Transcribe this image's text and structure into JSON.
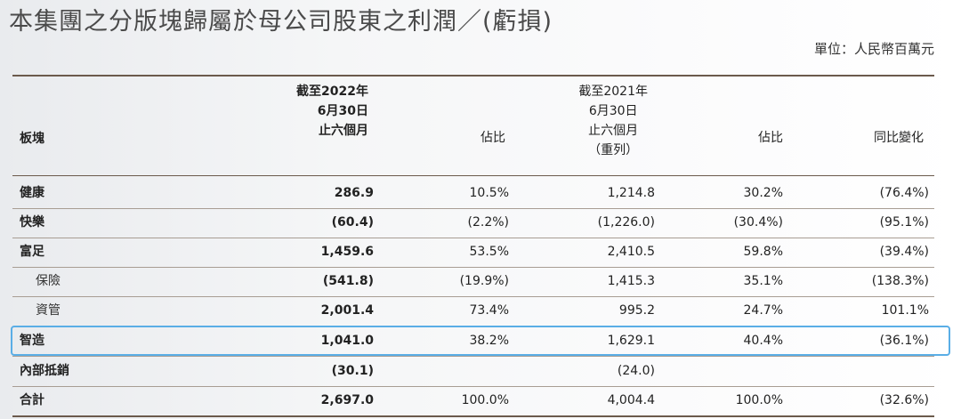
{
  "title": "本集團之分版塊歸屬於母公司股東之利潤／(虧損)",
  "unit": "單位：人民幣百萬元",
  "headers": {
    "segment": "板塊",
    "col1": [
      "截至2022年",
      "6月30日",
      "止六個月"
    ],
    "col2": "佔比",
    "col3": [
      "截至2021年",
      "6月30日",
      "止六個月",
      "（重列）"
    ],
    "col4": "佔比",
    "col5": "同比變化"
  },
  "rows": [
    {
      "label": "健康",
      "v2022": "286.9",
      "share2022": "10.5%",
      "v2021": "1,214.8",
      "share2021": "30.2%",
      "yoy": "(76.4%)"
    },
    {
      "label": "快樂",
      "v2022": "(60.4)",
      "share2022": "(2.2%)",
      "v2021": "(1,226.0)",
      "share2021": "(30.4%)",
      "yoy": "(95.1%)"
    },
    {
      "label": "富足",
      "v2022": "1,459.6",
      "share2022": "53.5%",
      "v2021": "2,410.5",
      "share2021": "59.8%",
      "yoy": "(39.4%)"
    },
    {
      "label": "保險",
      "v2022": "(541.8)",
      "share2022": "(19.9%)",
      "v2021": "1,415.3",
      "share2021": "35.1%",
      "yoy": "(138.3%)"
    },
    {
      "label": "資管",
      "v2022": "2,001.4",
      "share2022": "73.4%",
      "v2021": "995.2",
      "share2021": "24.7%",
      "yoy": "101.1%"
    },
    {
      "label": "智造",
      "v2022": "1,041.0",
      "share2022": "38.2%",
      "v2021": "1,629.1",
      "share2021": "40.4%",
      "yoy": "(36.1%)"
    },
    {
      "label": "內部抵銷",
      "v2022": "(30.1)",
      "share2022": "",
      "v2021": "(24.0)",
      "share2021": "",
      "yoy": ""
    },
    {
      "label": "合計",
      "v2022": "2,697.0",
      "share2022": "100.0%",
      "v2021": "4,004.4",
      "share2021": "100.0%",
      "yoy": "(32.6%)"
    }
  ]
}
